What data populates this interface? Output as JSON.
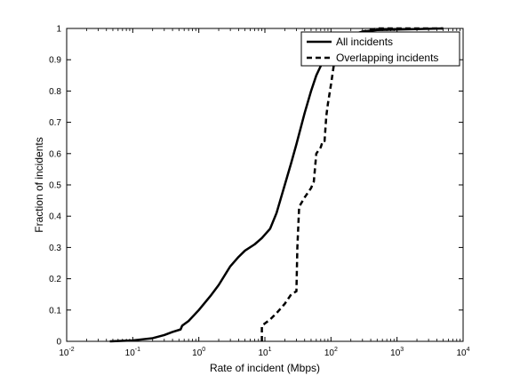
{
  "chart_data": {
    "type": "line",
    "xlabel": "Rate of incident (Mbps)",
    "ylabel": "Fraction of incidents",
    "x_scale": "log",
    "xlim": [
      0.01,
      10000
    ],
    "ylim": [
      0,
      1
    ],
    "x_ticks": [
      {
        "value": 0.01,
        "base": "10",
        "exp": "-2"
      },
      {
        "value": 0.1,
        "base": "10",
        "exp": "-1"
      },
      {
        "value": 1,
        "base": "10",
        "exp": "0"
      },
      {
        "value": 10,
        "base": "10",
        "exp": "1"
      },
      {
        "value": 100,
        "base": "10",
        "exp": "2"
      },
      {
        "value": 1000,
        "base": "10",
        "exp": "3"
      },
      {
        "value": 10000,
        "base": "10",
        "exp": "4"
      }
    ],
    "y_ticks": [
      {
        "value": 0,
        "label": "0"
      },
      {
        "value": 0.1,
        "label": "0.1"
      },
      {
        "value": 0.2,
        "label": "0.2"
      },
      {
        "value": 0.3,
        "label": "0.3"
      },
      {
        "value": 0.4,
        "label": "0.4"
      },
      {
        "value": 0.5,
        "label": "0.5"
      },
      {
        "value": 0.6,
        "label": "0.6"
      },
      {
        "value": 0.7,
        "label": "0.7"
      },
      {
        "value": 0.8,
        "label": "0.8"
      },
      {
        "value": 0.9,
        "label": "0.9"
      },
      {
        "value": 1,
        "label": "1"
      }
    ],
    "grid": false,
    "legend_position": "top-right",
    "series": [
      {
        "name": "All incidents",
        "style": "solid",
        "color": "#000000",
        "points": [
          [
            0.045,
            0.0
          ],
          [
            0.1,
            0.003
          ],
          [
            0.2,
            0.01
          ],
          [
            0.3,
            0.02
          ],
          [
            0.4,
            0.03
          ],
          [
            0.53,
            0.038
          ],
          [
            0.56,
            0.05
          ],
          [
            0.7,
            0.065
          ],
          [
            1.0,
            0.1
          ],
          [
            1.5,
            0.145
          ],
          [
            2.0,
            0.18
          ],
          [
            3.0,
            0.24
          ],
          [
            4.0,
            0.27
          ],
          [
            5.0,
            0.29
          ],
          [
            7.0,
            0.31
          ],
          [
            9.0,
            0.33
          ],
          [
            12.0,
            0.36
          ],
          [
            15.0,
            0.41
          ],
          [
            20.0,
            0.5
          ],
          [
            25.0,
            0.57
          ],
          [
            30.0,
            0.63
          ],
          [
            40.0,
            0.73
          ],
          [
            50.0,
            0.8
          ],
          [
            60.0,
            0.85
          ],
          [
            70.0,
            0.88
          ],
          [
            80.0,
            0.9
          ],
          [
            100.0,
            0.93
          ],
          [
            130.0,
            0.95
          ],
          [
            200.0,
            0.98
          ],
          [
            300.0,
            0.99
          ],
          [
            500.0,
            0.995
          ],
          [
            5000.0,
            1.0
          ]
        ]
      },
      {
        "name": "Overlapping incidents",
        "style": "dashed",
        "color": "#000000",
        "points": [
          [
            9.0,
            0.0
          ],
          [
            9.0,
            0.05
          ],
          [
            12.0,
            0.07
          ],
          [
            15.0,
            0.09
          ],
          [
            20.0,
            0.12
          ],
          [
            25.0,
            0.15
          ],
          [
            30.0,
            0.16
          ],
          [
            31.0,
            0.3
          ],
          [
            33.0,
            0.43
          ],
          [
            40.0,
            0.46
          ],
          [
            50.0,
            0.49
          ],
          [
            55.0,
            0.51
          ],
          [
            60.0,
            0.6
          ],
          [
            70.0,
            0.62
          ],
          [
            75.0,
            0.64
          ],
          [
            80.0,
            0.64
          ],
          [
            85.0,
            0.72
          ],
          [
            90.0,
            0.76
          ],
          [
            100.0,
            0.82
          ],
          [
            110.0,
            0.88
          ],
          [
            120.0,
            0.92
          ],
          [
            135.0,
            0.95
          ],
          [
            150.0,
            0.96
          ],
          [
            200.0,
            0.98
          ],
          [
            300.0,
            0.99
          ],
          [
            500.0,
            1.0
          ],
          [
            5000.0,
            1.0
          ]
        ]
      }
    ]
  }
}
